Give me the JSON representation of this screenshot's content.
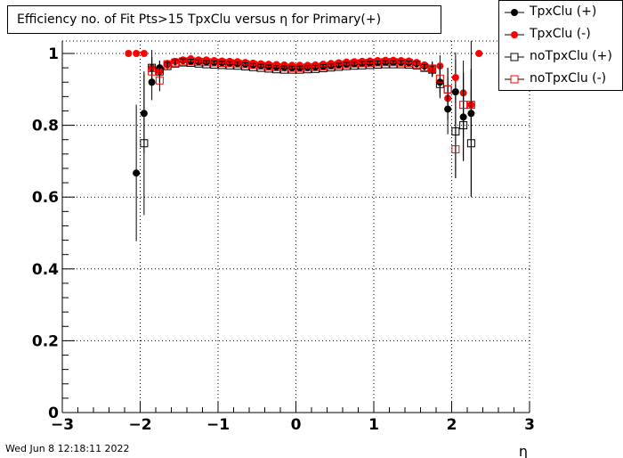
{
  "title": "Efficiency no. of Fit Pts>15 TpxClu versus η for Primary(+)",
  "timestamp": "Wed Jun  8 12:18:11 2022",
  "legend": [
    {
      "label": "TpxClu (+)"
    },
    {
      "label": "TpxClu (-)"
    },
    {
      "label": "noTpxClu (+)"
    },
    {
      "label": "noTpxClu (-)"
    }
  ],
  "colors": {
    "black": "#000000",
    "red": "#ff0000"
  },
  "chart_data": {
    "type": "scatter",
    "title": "Efficiency no. of Fit Pts>15 TpxClu versus η for Primary(+)",
    "xlabel": "η",
    "ylabel": "",
    "xlim": [
      -3,
      3
    ],
    "ylim": [
      0,
      1.0
    ],
    "xticks": [
      -3,
      -2,
      -1,
      0,
      1,
      2,
      3
    ],
    "xtick_labels": [
      "−3",
      "−2",
      "−1",
      "0",
      "1",
      "2",
      "3"
    ],
    "yticks": [
      0,
      0.2,
      0.4,
      0.6,
      0.8,
      1
    ],
    "ytick_labels": [
      "0",
      "0.2",
      "0.4",
      "0.6",
      "0.8",
      "1"
    ],
    "grid": true,
    "legend_position": "top-right",
    "series": [
      {
        "name": "TpxClu (+)",
        "marker": "filled-circle",
        "color": "#000000",
        "points": [
          {
            "x": -2.05,
            "y": 0.667,
            "err": 0.19
          },
          {
            "x": -1.95,
            "y": 0.833,
            "err": 0.11
          },
          {
            "x": -1.85,
            "y": 0.92,
            "err": 0.05
          },
          {
            "x": -1.75,
            "y": 0.96,
            "err": 0.02
          },
          {
            "x": -1.65,
            "y": 0.97,
            "err": 0.01
          },
          {
            "x": -1.55,
            "y": 0.978,
            "err": 0.006
          },
          {
            "x": -1.45,
            "y": 0.98,
            "err": 0.005
          },
          {
            "x": -1.35,
            "y": 0.978,
            "err": 0.005
          },
          {
            "x": -1.25,
            "y": 0.977,
            "err": 0.005
          },
          {
            "x": -1.15,
            "y": 0.976,
            "err": 0.005
          },
          {
            "x": -1.05,
            "y": 0.975,
            "err": 0.005
          },
          {
            "x": -0.95,
            "y": 0.974,
            "err": 0.005
          },
          {
            "x": -0.85,
            "y": 0.973,
            "err": 0.005
          },
          {
            "x": -0.75,
            "y": 0.972,
            "err": 0.005
          },
          {
            "x": -0.65,
            "y": 0.97,
            "err": 0.005
          },
          {
            "x": -0.55,
            "y": 0.968,
            "err": 0.005
          },
          {
            "x": -0.45,
            "y": 0.966,
            "err": 0.005
          },
          {
            "x": -0.35,
            "y": 0.964,
            "err": 0.005
          },
          {
            "x": -0.25,
            "y": 0.962,
            "err": 0.005
          },
          {
            "x": -0.15,
            "y": 0.961,
            "err": 0.005
          },
          {
            "x": -0.05,
            "y": 0.96,
            "err": 0.005
          },
          {
            "x": 0.05,
            "y": 0.96,
            "err": 0.005
          },
          {
            "x": 0.15,
            "y": 0.961,
            "err": 0.005
          },
          {
            "x": 0.25,
            "y": 0.962,
            "err": 0.005
          },
          {
            "x": 0.35,
            "y": 0.964,
            "err": 0.005
          },
          {
            "x": 0.45,
            "y": 0.966,
            "err": 0.005
          },
          {
            "x": 0.55,
            "y": 0.968,
            "err": 0.005
          },
          {
            "x": 0.65,
            "y": 0.97,
            "err": 0.005
          },
          {
            "x": 0.75,
            "y": 0.971,
            "err": 0.005
          },
          {
            "x": 0.85,
            "y": 0.972,
            "err": 0.005
          },
          {
            "x": 0.95,
            "y": 0.973,
            "err": 0.005
          },
          {
            "x": 1.05,
            "y": 0.974,
            "err": 0.005
          },
          {
            "x": 1.15,
            "y": 0.975,
            "err": 0.005
          },
          {
            "x": 1.25,
            "y": 0.975,
            "err": 0.005
          },
          {
            "x": 1.35,
            "y": 0.975,
            "err": 0.006
          },
          {
            "x": 1.45,
            "y": 0.974,
            "err": 0.006
          },
          {
            "x": 1.55,
            "y": 0.972,
            "err": 0.008
          },
          {
            "x": 1.65,
            "y": 0.965,
            "err": 0.01
          },
          {
            "x": 1.75,
            "y": 0.955,
            "err": 0.02
          },
          {
            "x": 1.85,
            "y": 0.92,
            "err": 0.04
          },
          {
            "x": 1.95,
            "y": 0.845,
            "err": 0.07
          },
          {
            "x": 2.05,
            "y": 0.893,
            "err": 0.09
          },
          {
            "x": 2.15,
            "y": 0.823,
            "err": 0.12
          },
          {
            "x": 2.25,
            "y": 0.833,
            "err": 0.23
          }
        ]
      },
      {
        "name": "TpxClu (-)",
        "marker": "filled-circle",
        "color": "#ff0000",
        "points": [
          {
            "x": -2.15,
            "y": 1.0,
            "err": 0
          },
          {
            "x": -2.05,
            "y": 1.0,
            "err": 0
          },
          {
            "x": -1.95,
            "y": 1.0,
            "err": 0
          },
          {
            "x": -1.85,
            "y": 0.96,
            "err": 0.03
          },
          {
            "x": -1.75,
            "y": 0.95,
            "err": 0.02
          },
          {
            "x": -1.65,
            "y": 0.972,
            "err": 0.01
          },
          {
            "x": -1.55,
            "y": 0.978,
            "err": 0.006
          },
          {
            "x": -1.45,
            "y": 0.982,
            "err": 0.005
          },
          {
            "x": -1.35,
            "y": 0.985,
            "err": 0.005
          },
          {
            "x": -1.25,
            "y": 0.982,
            "err": 0.005
          },
          {
            "x": -1.15,
            "y": 0.982,
            "err": 0.005
          },
          {
            "x": -1.05,
            "y": 0.98,
            "err": 0.005
          },
          {
            "x": -0.95,
            "y": 0.979,
            "err": 0.005
          },
          {
            "x": -0.85,
            "y": 0.978,
            "err": 0.005
          },
          {
            "x": -0.75,
            "y": 0.977,
            "err": 0.005
          },
          {
            "x": -0.65,
            "y": 0.975,
            "err": 0.005
          },
          {
            "x": -0.55,
            "y": 0.973,
            "err": 0.005
          },
          {
            "x": -0.45,
            "y": 0.971,
            "err": 0.005
          },
          {
            "x": -0.35,
            "y": 0.97,
            "err": 0.005
          },
          {
            "x": -0.25,
            "y": 0.969,
            "err": 0.005
          },
          {
            "x": -0.15,
            "y": 0.968,
            "err": 0.005
          },
          {
            "x": -0.05,
            "y": 0.967,
            "err": 0.005
          },
          {
            "x": 0.05,
            "y": 0.967,
            "err": 0.005
          },
          {
            "x": 0.15,
            "y": 0.967,
            "err": 0.005
          },
          {
            "x": 0.25,
            "y": 0.968,
            "err": 0.005
          },
          {
            "x": 0.35,
            "y": 0.97,
            "err": 0.005
          },
          {
            "x": 0.45,
            "y": 0.972,
            "err": 0.005
          },
          {
            "x": 0.55,
            "y": 0.974,
            "err": 0.005
          },
          {
            "x": 0.65,
            "y": 0.976,
            "err": 0.005
          },
          {
            "x": 0.75,
            "y": 0.977,
            "err": 0.005
          },
          {
            "x": 0.85,
            "y": 0.978,
            "err": 0.005
          },
          {
            "x": 0.95,
            "y": 0.979,
            "err": 0.005
          },
          {
            "x": 1.05,
            "y": 0.98,
            "err": 0.005
          },
          {
            "x": 1.15,
            "y": 0.981,
            "err": 0.005
          },
          {
            "x": 1.25,
            "y": 0.981,
            "err": 0.005
          },
          {
            "x": 1.35,
            "y": 0.98,
            "err": 0.006
          },
          {
            "x": 1.45,
            "y": 0.979,
            "err": 0.006
          },
          {
            "x": 1.55,
            "y": 0.975,
            "err": 0.008
          },
          {
            "x": 1.65,
            "y": 0.968,
            "err": 0.01
          },
          {
            "x": 1.75,
            "y": 0.955,
            "err": 0.02
          },
          {
            "x": 1.85,
            "y": 0.965,
            "err": 0.03
          },
          {
            "x": 1.95,
            "y": 0.875,
            "err": 0.06
          },
          {
            "x": 2.05,
            "y": 0.933,
            "err": 0.07
          },
          {
            "x": 2.15,
            "y": 0.89,
            "err": 0.09
          },
          {
            "x": 2.25,
            "y": 0.857,
            "err": 0.1
          },
          {
            "x": 2.35,
            "y": 1.0,
            "err": 0
          }
        ]
      },
      {
        "name": "noTpxClu (+)",
        "marker": "open-square",
        "color": "#000000",
        "points": [
          {
            "x": -1.95,
            "y": 0.75,
            "err": 0.2
          },
          {
            "x": -1.85,
            "y": 0.96,
            "err": 0.05
          },
          {
            "x": -1.75,
            "y": 0.95,
            "err": 0.03
          },
          {
            "x": -1.65,
            "y": 0.965,
            "err": 0.01
          },
          {
            "x": -1.55,
            "y": 0.972,
            "err": 0.008
          },
          {
            "x": -1.45,
            "y": 0.975,
            "err": 0.005
          },
          {
            "x": -1.35,
            "y": 0.974,
            "err": 0.005
          },
          {
            "x": -1.25,
            "y": 0.972,
            "err": 0.005
          },
          {
            "x": -1.15,
            "y": 0.97,
            "err": 0.005
          },
          {
            "x": -1.05,
            "y": 0.969,
            "err": 0.005
          },
          {
            "x": -0.95,
            "y": 0.968,
            "err": 0.005
          },
          {
            "x": -0.85,
            "y": 0.967,
            "err": 0.005
          },
          {
            "x": -0.75,
            "y": 0.966,
            "err": 0.005
          },
          {
            "x": -0.65,
            "y": 0.964,
            "err": 0.005
          },
          {
            "x": -0.55,
            "y": 0.962,
            "err": 0.005
          },
          {
            "x": -0.45,
            "y": 0.96,
            "err": 0.005
          },
          {
            "x": -0.35,
            "y": 0.958,
            "err": 0.005
          },
          {
            "x": -0.25,
            "y": 0.956,
            "err": 0.005
          },
          {
            "x": -0.15,
            "y": 0.955,
            "err": 0.005
          },
          {
            "x": -0.05,
            "y": 0.955,
            "err": 0.005
          },
          {
            "x": 0.05,
            "y": 0.955,
            "err": 0.005
          },
          {
            "x": 0.15,
            "y": 0.956,
            "err": 0.005
          },
          {
            "x": 0.25,
            "y": 0.957,
            "err": 0.005
          },
          {
            "x": 0.35,
            "y": 0.959,
            "err": 0.005
          },
          {
            "x": 0.45,
            "y": 0.961,
            "err": 0.005
          },
          {
            "x": 0.55,
            "y": 0.963,
            "err": 0.005
          },
          {
            "x": 0.65,
            "y": 0.965,
            "err": 0.005
          },
          {
            "x": 0.75,
            "y": 0.966,
            "err": 0.005
          },
          {
            "x": 0.85,
            "y": 0.967,
            "err": 0.005
          },
          {
            "x": 0.95,
            "y": 0.968,
            "err": 0.005
          },
          {
            "x": 1.05,
            "y": 0.969,
            "err": 0.005
          },
          {
            "x": 1.15,
            "y": 0.97,
            "err": 0.005
          },
          {
            "x": 1.25,
            "y": 0.97,
            "err": 0.005
          },
          {
            "x": 1.35,
            "y": 0.97,
            "err": 0.006
          },
          {
            "x": 1.45,
            "y": 0.969,
            "err": 0.006
          },
          {
            "x": 1.55,
            "y": 0.967,
            "err": 0.008
          },
          {
            "x": 1.65,
            "y": 0.96,
            "err": 0.01
          },
          {
            "x": 1.75,
            "y": 0.955,
            "err": 0.02
          },
          {
            "x": 1.85,
            "y": 0.915,
            "err": 0.04
          },
          {
            "x": 1.95,
            "y": 0.9,
            "err": 0.06
          },
          {
            "x": 2.05,
            "y": 0.783,
            "err": 0.13
          },
          {
            "x": 2.15,
            "y": 0.8,
            "err": 0.1
          },
          {
            "x": 2.25,
            "y": 0.75,
            "err": 0.15
          }
        ]
      },
      {
        "name": "noTpxClu (-)",
        "marker": "open-square",
        "color": "#ff0000",
        "points": [
          {
            "x": -1.85,
            "y": 0.95,
            "err": 0.04
          },
          {
            "x": -1.75,
            "y": 0.925,
            "err": 0.03
          },
          {
            "x": -1.65,
            "y": 0.97,
            "err": 0.01
          },
          {
            "x": -1.55,
            "y": 0.975,
            "err": 0.007
          },
          {
            "x": -1.45,
            "y": 0.978,
            "err": 0.005
          },
          {
            "x": -1.35,
            "y": 0.978,
            "err": 0.005
          },
          {
            "x": -1.25,
            "y": 0.977,
            "err": 0.005
          },
          {
            "x": -1.15,
            "y": 0.976,
            "err": 0.005
          },
          {
            "x": -1.05,
            "y": 0.975,
            "err": 0.005
          },
          {
            "x": -0.95,
            "y": 0.974,
            "err": 0.005
          },
          {
            "x": -0.85,
            "y": 0.973,
            "err": 0.005
          },
          {
            "x": -0.75,
            "y": 0.972,
            "err": 0.005
          },
          {
            "x": -0.65,
            "y": 0.97,
            "err": 0.005
          },
          {
            "x": -0.55,
            "y": 0.968,
            "err": 0.005
          },
          {
            "x": -0.45,
            "y": 0.966,
            "err": 0.005
          },
          {
            "x": -0.35,
            "y": 0.964,
            "err": 0.005
          },
          {
            "x": -0.25,
            "y": 0.962,
            "err": 0.005
          },
          {
            "x": -0.15,
            "y": 0.961,
            "err": 0.005
          },
          {
            "x": -0.05,
            "y": 0.96,
            "err": 0.005
          },
          {
            "x": 0.05,
            "y": 0.96,
            "err": 0.005
          },
          {
            "x": 0.15,
            "y": 0.961,
            "err": 0.005
          },
          {
            "x": 0.25,
            "y": 0.962,
            "err": 0.005
          },
          {
            "x": 0.35,
            "y": 0.964,
            "err": 0.005
          },
          {
            "x": 0.45,
            "y": 0.966,
            "err": 0.005
          },
          {
            "x": 0.55,
            "y": 0.968,
            "err": 0.005
          },
          {
            "x": 0.65,
            "y": 0.97,
            "err": 0.005
          },
          {
            "x": 0.75,
            "y": 0.972,
            "err": 0.005
          },
          {
            "x": 0.85,
            "y": 0.973,
            "err": 0.005
          },
          {
            "x": 0.95,
            "y": 0.974,
            "err": 0.005
          },
          {
            "x": 1.05,
            "y": 0.975,
            "err": 0.005
          },
          {
            "x": 1.15,
            "y": 0.976,
            "err": 0.005
          },
          {
            "x": 1.25,
            "y": 0.976,
            "err": 0.005
          },
          {
            "x": 1.35,
            "y": 0.975,
            "err": 0.006
          },
          {
            "x": 1.45,
            "y": 0.974,
            "err": 0.006
          },
          {
            "x": 1.55,
            "y": 0.97,
            "err": 0.008
          },
          {
            "x": 1.65,
            "y": 0.962,
            "err": 0.01
          },
          {
            "x": 1.75,
            "y": 0.958,
            "err": 0.02
          },
          {
            "x": 1.85,
            "y": 0.93,
            "err": 0.04
          },
          {
            "x": 1.95,
            "y": 0.9,
            "err": 0.06
          },
          {
            "x": 2.05,
            "y": 0.733,
            "err": 0.08
          },
          {
            "x": 2.15,
            "y": 0.857,
            "err": 0.09
          },
          {
            "x": 2.25,
            "y": 0.857,
            "err": 0.1
          }
        ]
      }
    ]
  }
}
